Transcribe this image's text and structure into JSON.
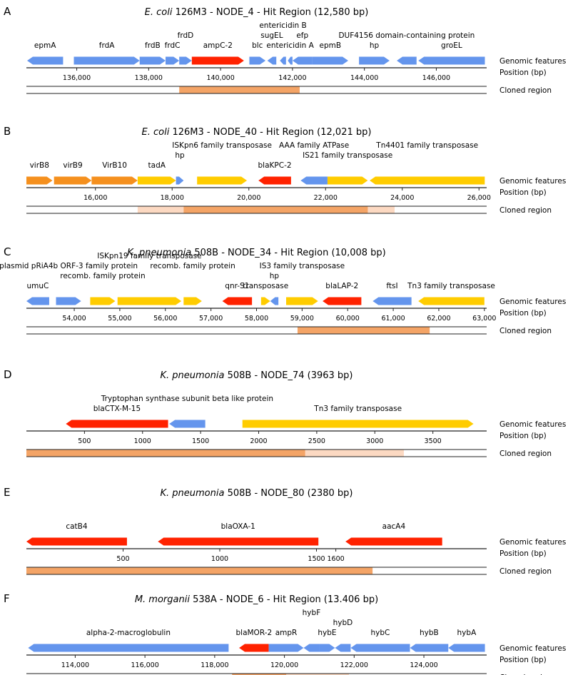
{
  "colors": {
    "blue": "#6495ed",
    "red": "#ff2200",
    "yellow": "#ffcc00",
    "orange": "#f5901e",
    "clone": "#f4a466",
    "clone_light": "#fcd9c2",
    "line": "#222222"
  },
  "row_labels": [
    "Genomic features",
    "Position (bp)",
    "Cloned region"
  ],
  "panels": [
    {
      "letter": "A",
      "title": {
        "italic": "E. coli",
        "rest": " 126M3 - NODE_4 - Hit Region (12,580 bp)"
      },
      "xrange": [
        134600,
        147400
      ],
      "ticks": [
        {
          "v": 136000,
          "t": "136,000"
        },
        {
          "v": 138000,
          "t": "138,000"
        },
        {
          "v": 140000,
          "t": "140,000"
        },
        {
          "v": 142000,
          "t": "142,000"
        },
        {
          "v": 144000,
          "t": "144,000"
        },
        {
          "v": 146000,
          "t": "146,000"
        }
      ],
      "genes": [
        {
          "s": 134620,
          "e": 135620,
          "dir": -1,
          "c": "blue",
          "label": "epmA",
          "lvl": 0
        },
        {
          "s": 135920,
          "e": 137750,
          "dir": 1,
          "c": "blue",
          "label": "frdA",
          "lvl": 0
        },
        {
          "s": 137750,
          "e": 138470,
          "dir": 1,
          "c": "blue",
          "label": "frdB",
          "lvl": 0
        },
        {
          "s": 138470,
          "e": 138850,
          "dir": 1,
          "c": "blue",
          "label": "frdC",
          "lvl": 0
        },
        {
          "s": 138850,
          "e": 139200,
          "dir": 1,
          "c": "blue",
          "label": "frdD",
          "lvl": 1
        },
        {
          "s": 139200,
          "e": 140650,
          "dir": 1,
          "c": "red",
          "label": "ampC-2",
          "lvl": 0
        },
        {
          "s": 140800,
          "e": 141250,
          "dir": 1,
          "c": "blue",
          "label": "blc",
          "lvl": 0
        },
        {
          "s": 141300,
          "e": 141550,
          "dir": -1,
          "c": "blue",
          "label": "sugEL",
          "lvl": 1
        },
        {
          "s": 141650,
          "e": 141820,
          "dir": -1,
          "c": "blue",
          "label": "entericidin B",
          "lvl": 2
        },
        {
          "s": 141870,
          "e": 142000,
          "dir": -1,
          "c": "blue",
          "label": "entericidin A",
          "lvl": 0
        },
        {
          "s": 142000,
          "e": 142550,
          "dir": -1,
          "c": "blue",
          "label": "efp",
          "lvl": 1
        },
        {
          "s": 142550,
          "e": 143550,
          "dir": 1,
          "c": "blue",
          "label": "epmB",
          "lvl": 0
        },
        {
          "s": 143850,
          "e": 144700,
          "dir": 1,
          "c": "blue",
          "label": "hp",
          "lvl": 0
        },
        {
          "s": 144900,
          "e": 145450,
          "dir": -1,
          "c": "blue",
          "label": "DUF4156 domain-containing protein",
          "lvl": 1
        },
        {
          "s": 145500,
          "e": 147350,
          "dir": -1,
          "c": "blue",
          "label": "groEL",
          "lvl": 0
        }
      ],
      "clone": [
        [
          138850,
          142200,
          "clone"
        ]
      ]
    },
    {
      "letter": "B",
      "title": {
        "italic": "E. coli",
        "rest": " 126M3 - NODE_40 - Hit Region (12,021 bp)"
      },
      "xrange": [
        14200,
        26200
      ],
      "ticks": [
        {
          "v": 16000,
          "t": "16,000"
        },
        {
          "v": 18000,
          "t": "18,000"
        },
        {
          "v": 20000,
          "t": "20,000"
        },
        {
          "v": 22000,
          "t": "22,000"
        },
        {
          "v": 24000,
          "t": "24,000"
        },
        {
          "v": 26000,
          "t": "26,000"
        }
      ],
      "genes": [
        {
          "s": 14200,
          "e": 14880,
          "dir": 1,
          "c": "orange",
          "label": "virB8",
          "lvl": 0
        },
        {
          "s": 14920,
          "e": 15900,
          "dir": 1,
          "c": "orange",
          "label": "virB9",
          "lvl": 0
        },
        {
          "s": 15900,
          "e": 17100,
          "dir": 1,
          "c": "orange",
          "label": "VirB10",
          "lvl": 0
        },
        {
          "s": 17100,
          "e": 18100,
          "dir": 1,
          "c": "yellow",
          "label": "tadA",
          "lvl": 0
        },
        {
          "s": 18100,
          "e": 18300,
          "dir": 1,
          "c": "blue",
          "label": "hp",
          "lvl": 1
        },
        {
          "s": 18650,
          "e": 19950,
          "dir": 1,
          "c": "yellow",
          "label": "ISKpn6 family transposase",
          "lvl": 2
        },
        {
          "s": 20250,
          "e": 21100,
          "dir": -1,
          "c": "red",
          "label": "blaKPC-2",
          "lvl": 0
        },
        {
          "s": 21350,
          "e": 22050,
          "dir": -1,
          "c": "blue",
          "label": "AAA family ATPase",
          "lvl": 2
        },
        {
          "s": 22050,
          "e": 23100,
          "dir": 1,
          "c": "yellow",
          "label": "IS21 family transposase",
          "lvl": 1
        },
        {
          "s": 23150,
          "e": 26150,
          "dir": -1,
          "c": "yellow",
          "label": "Tn4401 family transposase",
          "lvl": 2
        }
      ],
      "clone": [
        [
          17100,
          23800,
          "clone_light"
        ],
        [
          18300,
          23100,
          "clone"
        ]
      ]
    },
    {
      "letter": "C",
      "title": {
        "italic": "K. pneumonia",
        "rest": " 508B - NODE_34 - Hit Region (10,008 bp)"
      },
      "xrange": [
        52950,
        63050
      ],
      "ticks": [
        {
          "v": 54000,
          "t": "54,000"
        },
        {
          "v": 55000,
          "t": "55,000"
        },
        {
          "v": 56000,
          "t": "56,000"
        },
        {
          "v": 57000,
          "t": "57,000"
        },
        {
          "v": 58000,
          "t": "58,000"
        },
        {
          "v": 59000,
          "t": "59,000"
        },
        {
          "v": 60000,
          "t": "60,000"
        },
        {
          "v": 61000,
          "t": "61,000"
        },
        {
          "v": 62000,
          "t": "62,000"
        },
        {
          "v": 63000,
          "t": "63,000"
        }
      ],
      "genes": [
        {
          "s": 52950,
          "e": 53450,
          "dir": -1,
          "c": "blue",
          "label": "umuC",
          "lvl": 0
        },
        {
          "s": 53600,
          "e": 54150,
          "dir": 1,
          "c": "blue",
          "label": "plasmid pRiA4b ORF-3 family protein",
          "lvl": 2
        },
        {
          "s": 54350,
          "e": 54900,
          "dir": 1,
          "c": "yellow",
          "label": "recomb. family protein",
          "lvl": 1
        },
        {
          "s": 54950,
          "e": 56350,
          "dir": 1,
          "c": "yellow",
          "label": "ISKpn19 family transposase",
          "lvl": 3
        },
        {
          "s": 56400,
          "e": 56800,
          "dir": 1,
          "c": "yellow",
          "label": "recomb. family protein",
          "lvl": 2
        },
        {
          "s": 57250,
          "e": 57900,
          "dir": -1,
          "c": "red",
          "label": "qnr-S1",
          "lvl": 0
        },
        {
          "s": 58100,
          "e": 58300,
          "dir": 1,
          "c": "yellow",
          "label": "transposase",
          "lvl": 0
        },
        {
          "s": 58300,
          "e": 58480,
          "dir": -1,
          "c": "blue",
          "label": "hp",
          "lvl": 1
        },
        {
          "s": 58650,
          "e": 59350,
          "dir": 1,
          "c": "yellow",
          "label": "IS3 family transposase",
          "lvl": 2
        },
        {
          "s": 59450,
          "e": 60300,
          "dir": -1,
          "c": "red",
          "label": "blaLAP-2",
          "lvl": 0
        },
        {
          "s": 60550,
          "e": 61400,
          "dir": -1,
          "c": "blue",
          "label": "ftsI",
          "lvl": 0
        },
        {
          "s": 61550,
          "e": 63000,
          "dir": -1,
          "c": "yellow",
          "label": "Tn3 family transposase",
          "lvl": 0
        }
      ],
      "clone": [
        [
          58900,
          61800,
          "clone"
        ]
      ]
    },
    {
      "letter": "D",
      "title": {
        "italic": "K. pneumonia",
        "rest": " 508B - NODE_74 (3963 bp)"
      },
      "xrange": [
        0,
        3963
      ],
      "ticks": [
        {
          "v": 500,
          "t": "500"
        },
        {
          "v": 1000,
          "t": "1000"
        },
        {
          "v": 1500,
          "t": "1500"
        },
        {
          "v": 2000,
          "t": "2000"
        },
        {
          "v": 2500,
          "t": "2500"
        },
        {
          "v": 3000,
          "t": "3000"
        },
        {
          "v": 3500,
          "t": "3500"
        }
      ],
      "genes": [
        {
          "s": 340,
          "e": 1220,
          "dir": -1,
          "c": "red",
          "label": "blaCTX-M-15",
          "lvl": 0
        },
        {
          "s": 1230,
          "e": 1540,
          "dir": -1,
          "c": "blue",
          "label": "Tryptophan synthase subunit beta like protein",
          "lvl": 1
        },
        {
          "s": 1860,
          "e": 3850,
          "dir": 1,
          "c": "yellow",
          "label": "Tn3 family transposase",
          "lvl": 0
        }
      ],
      "clone": [
        [
          0,
          3250,
          "clone_light"
        ],
        [
          0,
          2400,
          "clone"
        ]
      ]
    },
    {
      "letter": "E",
      "title": {
        "italic": "K. pneumonia",
        "rest": " 508B - NODE_80 (2380 bp)"
      },
      "xrange": [
        0,
        2380
      ],
      "ticks": [
        {
          "v": 500,
          "t": "500"
        },
        {
          "v": 1000,
          "t": "1000"
        },
        {
          "v": 1500,
          "t": "1500"
        },
        {
          "v": 1600,
          "t": "1600"
        }
      ],
      "genes": [
        {
          "s": 0,
          "e": 520,
          "dir": -1,
          "c": "red",
          "label": "catB4",
          "lvl": 0
        },
        {
          "s": 680,
          "e": 1510,
          "dir": -1,
          "c": "red",
          "label": "blaOXA-1",
          "lvl": 0
        },
        {
          "s": 1650,
          "e": 2150,
          "dir": -1,
          "c": "red",
          "label": "aacA4",
          "lvl": 0
        }
      ],
      "clone": [
        [
          0,
          1790,
          "clone"
        ]
      ]
    },
    {
      "letter": "F",
      "title": {
        "italic": "M. morganii",
        "rest": " 538A - NODE_6 - Hit Region (13.406 bp)"
      },
      "xrange": [
        112600,
        125800
      ],
      "ticks": [
        {
          "v": 114000,
          "t": "114,000"
        },
        {
          "v": 116000,
          "t": "116,000"
        },
        {
          "v": 118000,
          "t": "118,000"
        },
        {
          "v": 120000,
          "t": "120,000"
        },
        {
          "v": 122000,
          "t": "122,000"
        },
        {
          "v": 124000,
          "t": "124,000"
        }
      ],
      "genes": [
        {
          "s": 112650,
          "e": 118400,
          "dir": -1,
          "c": "blue",
          "label": "alpha-2-macroglobulin",
          "lvl": 0
        },
        {
          "s": 118700,
          "e": 119550,
          "dir": -1,
          "c": "red",
          "label": "blaMOR-2",
          "lvl": 0
        },
        {
          "s": 119550,
          "e": 120550,
          "dir": 1,
          "c": "blue",
          "label": "ampR",
          "lvl": 0
        },
        {
          "s": 120550,
          "e": 121000,
          "dir": -1,
          "c": "blue",
          "label": "hybF",
          "lvl": 2
        },
        {
          "s": 121000,
          "e": 121450,
          "dir": 1,
          "c": "blue",
          "label": "hybE",
          "lvl": 0
        },
        {
          "s": 121450,
          "e": 121900,
          "dir": -1,
          "c": "blue",
          "label": "hybD",
          "lvl": 1
        },
        {
          "s": 121900,
          "e": 123600,
          "dir": -1,
          "c": "blue",
          "label": "hybC",
          "lvl": 0
        },
        {
          "s": 123600,
          "e": 124700,
          "dir": -1,
          "c": "blue",
          "label": "hybB",
          "lvl": 0
        },
        {
          "s": 124700,
          "e": 125750,
          "dir": -1,
          "c": "blue",
          "label": "hybA",
          "lvl": 0
        }
      ],
      "clone": [
        [
          118500,
          121850,
          "clone_light"
        ],
        [
          118500,
          120050,
          "clone"
        ]
      ]
    }
  ]
}
